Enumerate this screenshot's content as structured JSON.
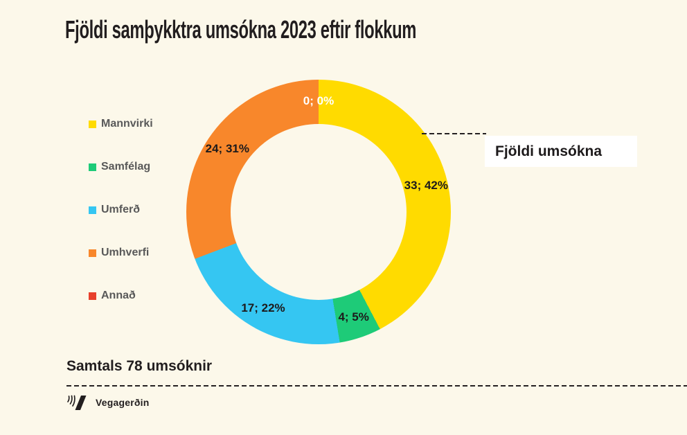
{
  "page": {
    "background_color": "#FCF8EA"
  },
  "chart_data": {
    "type": "pie",
    "subtype": "donut",
    "title": "Fjöldi samþykktra umsókna 2023 eftir flokkum",
    "categories": [
      "Mannvirki",
      "Samfélag",
      "Umferð",
      "Umhverfi",
      "Annað"
    ],
    "values": [
      33,
      4,
      17,
      24,
      0
    ],
    "total": 78,
    "percents_displayed": [
      42,
      5,
      22,
      31,
      0
    ],
    "slice_labels": [
      "33; 42%",
      "4; 5%",
      "17; 22%",
      "24; 31%",
      "0; 0%"
    ],
    "colors": [
      "#FFDB00",
      "#1ECB78",
      "#35C6F2",
      "#F8872B",
      "#E8402C"
    ],
    "slice_label_colors": [
      "#1D1A1B",
      "#1D1A1B",
      "#1D1A1B",
      "#1D1A1B",
      "#FFFFFF"
    ],
    "donut_hole_ratio": 0.665,
    "start_angle_deg": 0,
    "direction": "clockwise",
    "legend_position": "left",
    "annotation": "Fjöldi umsókna"
  },
  "footer": {
    "total_label": "Samtals 78 umsóknir",
    "logo_text": "Vegagerðin"
  }
}
